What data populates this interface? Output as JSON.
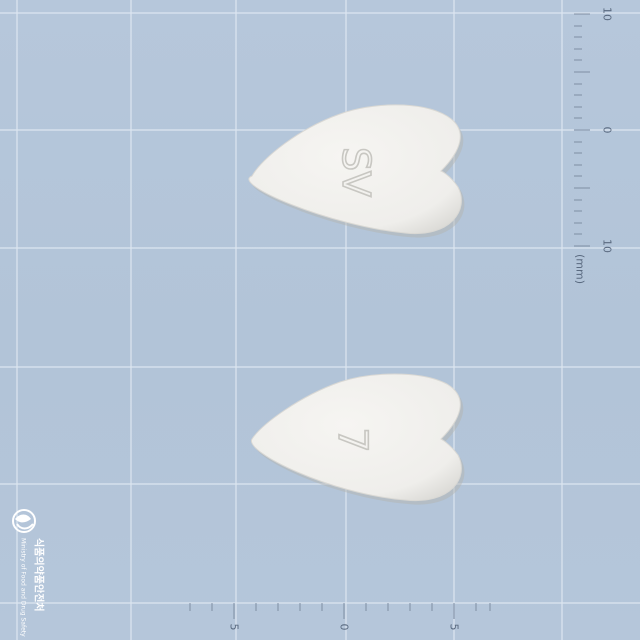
{
  "photo": {
    "background_color": "#b4c5d9",
    "grid_line_color": "#e4ecf5",
    "pill_color": "#f2f1ee",
    "pill_shadow_color": "#c9c9c4",
    "imprint_color": "#c8c7c2"
  },
  "tablet_front": {
    "imprint": "SV"
  },
  "tablet_back": {
    "imprint": "7"
  },
  "vertical_ruler": {
    "labels": [
      "10",
      "0",
      "10"
    ],
    "unit": "(mm)"
  },
  "horizontal_ruler": {
    "labels": [
      "5",
      "0",
      "5"
    ]
  },
  "watermark": {
    "logo_icon": "mfds-emblem-icon",
    "korean": "식품의약품안전처",
    "english": "Ministry of Food and Drug Safety"
  }
}
